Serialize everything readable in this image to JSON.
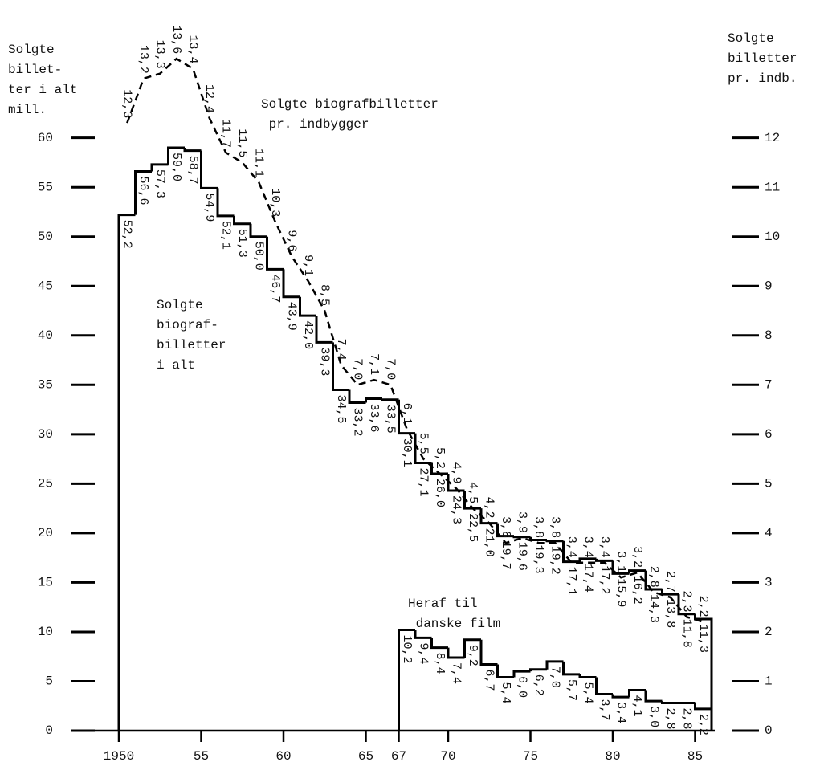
{
  "chart_data": {
    "type": "step",
    "ylabel": [
      "Solgte",
      "billet-",
      "ter i alt",
      "mill."
    ],
    "y2label": [
      "Solgte",
      "billetter",
      "pr. indb."
    ],
    "annotations": [
      {
        "lines": [
          "Solgte biografbilletter",
          " pr. indbygger"
        ]
      },
      {
        "lines": [
          "Solgte",
          "biograf-",
          "billetter",
          "i alt"
        ]
      },
      {
        "lines": [
          "Heraf til",
          " danske film"
        ]
      }
    ],
    "xlim": [
      1950,
      1986
    ],
    "xticks": [
      1950,
      {
        "value": 1955,
        "label": "55"
      },
      {
        "value": 1960,
        "label": "60"
      },
      {
        "value": 1965,
        "label": "65"
      },
      {
        "value": 1967,
        "label": "67"
      },
      {
        "value": 1970,
        "label": "70"
      },
      {
        "value": 1975,
        "label": "75"
      },
      {
        "value": 1980,
        "label": "80"
      },
      {
        "value": 1985,
        "label": "85"
      }
    ],
    "ylim": [
      0,
      72
    ],
    "yticks": [
      0,
      5,
      10,
      15,
      20,
      25,
      30,
      35,
      40,
      45,
      50,
      55,
      60
    ],
    "y2lim": [
      0,
      14.4
    ],
    "y2ticks": [
      0,
      1,
      2,
      3,
      4,
      5,
      6,
      7,
      8,
      9,
      10,
      11,
      12
    ],
    "series": [
      {
        "color": "#000000",
        "style": "solid",
        "axis": "y",
        "x": [
          1950,
          1951,
          1952,
          1953,
          1954,
          1955,
          1956,
          1957,
          1958,
          1959,
          1960,
          1961,
          1962,
          1963,
          1964,
          1965,
          1966,
          1967,
          1968,
          1969,
          1970,
          1971,
          1972,
          1973,
          1974,
          1975,
          1976,
          1977,
          1978,
          1979,
          1980,
          1981,
          1982,
          1983,
          1984,
          1985
        ],
        "values": [
          52.2,
          56.6,
          57.3,
          59.0,
          58.7,
          54.9,
          52.1,
          51.3,
          50.0,
          46.7,
          43.9,
          42.0,
          39.3,
          34.5,
          33.2,
          33.6,
          33.5,
          30.1,
          27.1,
          26.0,
          24.3,
          22.5,
          21.0,
          19.7,
          19.6,
          19.3,
          19.2,
          17.1,
          17.4,
          17.2,
          15.9,
          16.2,
          14.3,
          13.8,
          11.8,
          11.3
        ],
        "value_labels": [
          "52,2",
          "56,6",
          "57,3",
          "59,0",
          "58,7",
          "54,9",
          "52,1",
          "51,3",
          "50,0",
          "46,7",
          "43,9",
          "42,0",
          "39,3",
          "34,5",
          "33,2",
          "33,6",
          "33,5",
          "30,1",
          "27,1",
          "26,0",
          "24,3",
          "22,5",
          "21,0",
          "19,7",
          "19,6",
          "19,3",
          "19,2",
          "17,1",
          "17,4",
          "17,2",
          "15,9",
          "16,2",
          "14,3",
          "13,8",
          "11,8",
          "11,3"
        ]
      },
      {
        "color": "#000000",
        "style": "dashed",
        "axis": "y2",
        "x": [
          1950,
          1951,
          1952,
          1953,
          1954,
          1955,
          1956,
          1957,
          1958,
          1959,
          1960,
          1961,
          1962,
          1963,
          1964,
          1965,
          1966,
          1967,
          1968,
          1969,
          1970,
          1971,
          1972,
          1973,
          1974,
          1975,
          1976,
          1977,
          1978,
          1979,
          1980,
          1981,
          1982,
          1983,
          1984,
          1985
        ],
        "values": [
          12.3,
          13.2,
          13.3,
          13.6,
          13.4,
          12.4,
          11.7,
          11.5,
          11.1,
          10.3,
          9.6,
          9.1,
          8.5,
          7.4,
          7.0,
          7.1,
          7.0,
          6.1,
          5.5,
          5.2,
          4.9,
          4.5,
          4.2,
          3.8,
          3.9,
          3.8,
          3.8,
          3.4,
          3.4,
          3.4,
          3.1,
          3.2,
          2.8,
          2.7,
          2.3,
          2.2
        ],
        "value_labels": [
          "12,3",
          "13,2",
          "13,3",
          "13,6",
          "13,4",
          "12,4",
          "11,7",
          "11,5",
          "11,1",
          "10,3",
          "9,6",
          "9,1",
          "8,5",
          "7,4",
          "7,0",
          "7,1",
          "7,0",
          "6,1",
          "5,5",
          "5,2",
          "4,9",
          "4,5",
          "4,2",
          "3,8",
          "3,9",
          "3,8",
          "3,8",
          "3,4",
          "3,4",
          "3,4",
          "3,1",
          "3,2",
          "2,8",
          "2,7",
          "2,3",
          "2,2"
        ]
      },
      {
        "color": "#000000",
        "style": "solid",
        "axis": "y",
        "x": [
          1967,
          1968,
          1969,
          1970,
          1971,
          1972,
          1973,
          1974,
          1975,
          1976,
          1977,
          1978,
          1979,
          1980,
          1981,
          1982,
          1983,
          1984,
          1985
        ],
        "values": [
          10.2,
          9.4,
          8.4,
          7.4,
          9.2,
          6.7,
          5.4,
          6.0,
          6.2,
          7.0,
          5.7,
          5.4,
          3.7,
          3.4,
          4.1,
          3.0,
          2.8,
          2.8,
          2.2
        ],
        "value_labels": [
          "10,2",
          "9,4",
          "8,4",
          "7,4",
          "9,2",
          "6,7",
          "5,4",
          "6,0",
          "6,2",
          "7,0",
          "5,7",
          "5,4",
          "3,7",
          "3,4",
          "4,1",
          "3,0",
          "2,8",
          "2,8",
          "2,2"
        ]
      }
    ]
  }
}
